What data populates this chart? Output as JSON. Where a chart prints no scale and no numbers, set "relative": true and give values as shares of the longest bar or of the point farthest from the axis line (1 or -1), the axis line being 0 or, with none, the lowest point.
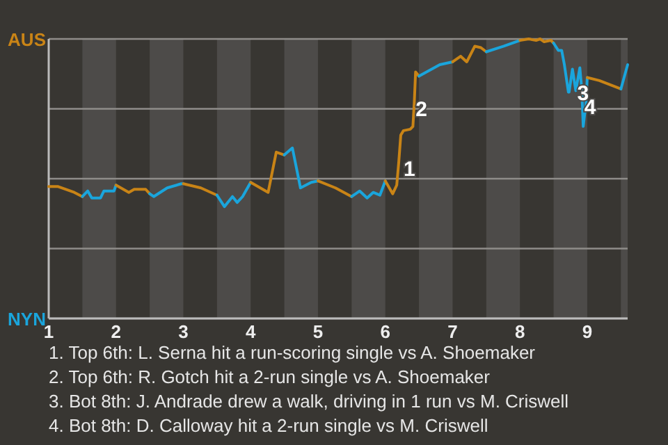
{
  "chart_data": {
    "type": "line",
    "relative": true,
    "grid": "y",
    "xlim": [
      1,
      9.6
    ],
    "xticks": [
      1,
      2,
      3,
      4,
      5,
      6,
      7,
      8,
      9
    ],
    "bands": [
      {
        "axis": "x",
        "from": 1.5,
        "to": 2,
        "color": "#4d4b49"
      },
      {
        "axis": "x",
        "from": 2.5,
        "to": 3,
        "color": "#4d4b49"
      },
      {
        "axis": "x",
        "from": 3.5,
        "to": 4,
        "color": "#4d4b49"
      },
      {
        "axis": "x",
        "from": 4.5,
        "to": 5,
        "color": "#4d4b49"
      },
      {
        "axis": "x",
        "from": 5.5,
        "to": 6,
        "color": "#4d4b49"
      },
      {
        "axis": "x",
        "from": 6.5,
        "to": 7,
        "color": "#4d4b49"
      },
      {
        "axis": "x",
        "from": 7.5,
        "to": 8,
        "color": "#4d4b49"
      },
      {
        "axis": "x",
        "from": 8.5,
        "to": 9,
        "color": "#4d4b49"
      },
      {
        "axis": "x",
        "from": 9.5,
        "to": 9.6,
        "color": "#4d4b49"
      }
    ],
    "series": [
      {
        "color": "#c98416",
        "x": [
          1,
          1.14,
          1.38,
          1.5
        ],
        "values": [
          0.472,
          0.472,
          0.451,
          0.436
        ]
      },
      {
        "color": "#1aa5dc",
        "x": [
          1.5,
          1.58,
          1.64,
          1.77,
          1.82,
          1.97,
          2
        ],
        "values": [
          0.436,
          0.456,
          0.431,
          0.431,
          0.456,
          0.456,
          0.477
        ]
      },
      {
        "color": "#c98416",
        "x": [
          2,
          2.19,
          2.27,
          2.44,
          2.5
        ],
        "values": [
          0.477,
          0.451,
          0.462,
          0.462,
          0.446
        ]
      },
      {
        "color": "#1aa5dc",
        "x": [
          2.5,
          2.56,
          2.76,
          2.97,
          3
        ],
        "values": [
          0.446,
          0.436,
          0.467,
          0.482,
          0.482
        ]
      },
      {
        "color": "#c98416",
        "x": [
          3,
          3.26,
          3.5
        ],
        "values": [
          0.482,
          0.467,
          0.441
        ]
      },
      {
        "color": "#1aa5dc",
        "x": [
          3.5,
          3.61,
          3.73,
          3.8,
          3.88,
          4
        ],
        "values": [
          0.441,
          0.4,
          0.436,
          0.415,
          0.436,
          0.487
        ]
      },
      {
        "color": "#c98416",
        "x": [
          4,
          4.26,
          4.38,
          4.5
        ],
        "values": [
          0.487,
          0.451,
          0.595,
          0.585
        ]
      },
      {
        "color": "#1aa5dc",
        "x": [
          4.5,
          4.62,
          4.74,
          4.9,
          5
        ],
        "values": [
          0.585,
          0.61,
          0.467,
          0.487,
          0.492
        ]
      },
      {
        "color": "#c98416",
        "x": [
          5,
          5.26,
          5.5
        ],
        "values": [
          0.492,
          0.467,
          0.436
        ]
      },
      {
        "color": "#1aa5dc",
        "x": [
          5.5,
          5.62,
          5.73,
          5.82,
          5.92,
          6
        ],
        "values": [
          0.436,
          0.456,
          0.431,
          0.451,
          0.441,
          0.492
        ]
      },
      {
        "color": "#c98416",
        "x": [
          6,
          6.11,
          6.17,
          6.2,
          6.23,
          6.27,
          6.37,
          6.41,
          6.43,
          6.45,
          6.5
        ],
        "values": [
          0.492,
          0.446,
          0.477,
          0.559,
          0.656,
          0.672,
          0.677,
          0.687,
          0.769,
          0.882,
          0.867
        ]
      },
      {
        "color": "#1aa5dc",
        "x": [
          6.5,
          6.81,
          7
        ],
        "values": [
          0.867,
          0.908,
          0.918
        ]
      },
      {
        "color": "#c98416",
        "x": [
          7,
          7.12,
          7.21,
          7.33,
          7.42,
          7.5
        ],
        "values": [
          0.918,
          0.938,
          0.918,
          0.974,
          0.969,
          0.954
        ]
      },
      {
        "color": "#1aa5dc",
        "x": [
          7.5,
          7.76,
          8
        ],
        "values": [
          0.954,
          0.974,
          0.995
        ]
      },
      {
        "color": "#c98416",
        "x": [
          8,
          8.13,
          8.24,
          8.3,
          8.36,
          8.46,
          8.5
        ],
        "values": [
          0.995,
          1,
          0.995,
          1,
          0.99,
          0.995,
          0.985
        ]
      },
      {
        "color": "#1aa5dc",
        "x": [
          8.5,
          8.57,
          8.62,
          8.66,
          8.72,
          8.73,
          8.78,
          8.83,
          8.89,
          8.92,
          8.94,
          8.96,
          8.98,
          9
        ],
        "values": [
          0.985,
          0.959,
          0.959,
          0.908,
          0.81,
          0.81,
          0.892,
          0.815,
          0.897,
          0.815,
          0.687,
          0.728,
          0.764,
          0.862
        ]
      },
      {
        "color": "#c98416",
        "x": [
          9,
          9.18,
          9.5
        ],
        "values": [
          0.862,
          0.851,
          0.821
        ]
      },
      {
        "color": "#1aa5dc",
        "x": [
          9.5,
          9.6
        ],
        "values": [
          0.821,
          0.908
        ]
      }
    ],
    "annotations": [
      "AUS",
      "NYN",
      {
        "text": "1",
        "x": 6.25,
        "y": 0.536
      },
      {
        "text": "2",
        "x": 6.43,
        "y": 0.75
      },
      {
        "text": "3",
        "x": 8.83,
        "y": 0.806
      },
      {
        "text": "4",
        "x": 8.935,
        "y": 0.755
      },
      "1. Top 6th: L. Serna hit a run-scoring single vs A. Shoemaker",
      "2. Top 6th: R. Gotch hit a 2-run single vs A. Shoemaker",
      "3. Bot 8th: J. Andrade drew a walk, driving in 1 run vs M. Criswell",
      "4. Bot 8th: D. Calloway hit a 2-run single vs M. Criswell"
    ]
  }
}
